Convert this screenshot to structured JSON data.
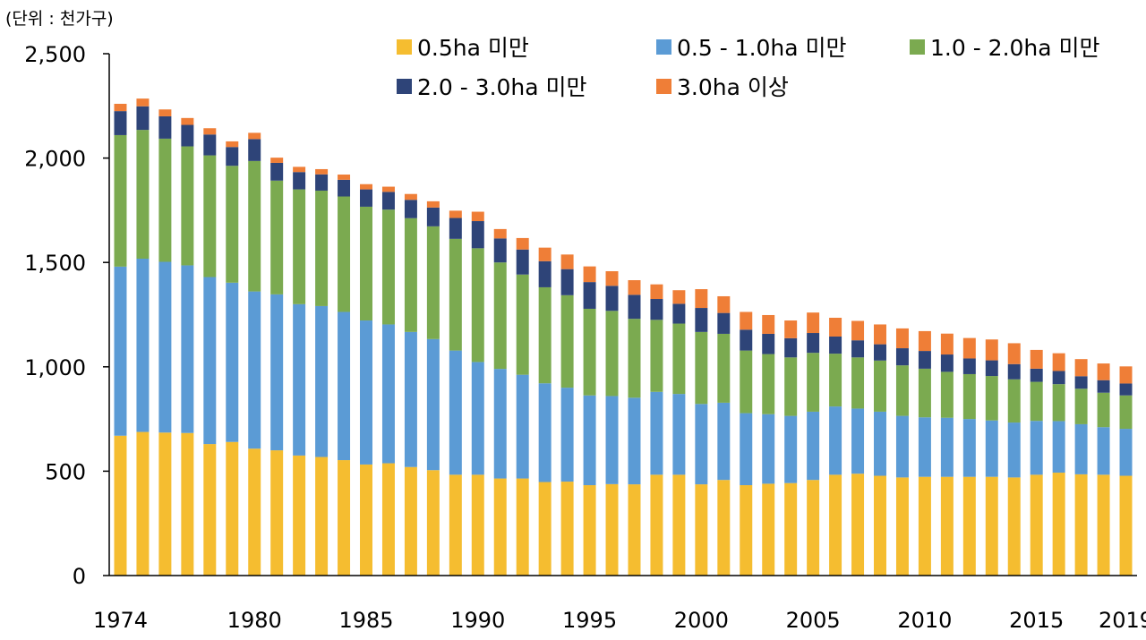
{
  "chart_data": {
    "type": "bar",
    "stacked": true,
    "unit_label": "(단위 : 천가구)",
    "y_ticks": [
      "0",
      "500",
      "1,000",
      "1,500",
      "2,000",
      "2,500"
    ],
    "ylim": [
      0,
      2500
    ],
    "x_tick_labels": [
      "1974",
      "1980",
      "1985",
      "1990",
      "1995",
      "2000",
      "2005",
      "2010",
      "2015",
      "2019"
    ],
    "categories": [
      1974,
      1975,
      1976,
      1977,
      1978,
      1979,
      1980,
      1981,
      1982,
      1983,
      1984,
      1985,
      1986,
      1987,
      1988,
      1989,
      1990,
      1991,
      1992,
      1993,
      1994,
      1995,
      1996,
      1997,
      1998,
      1999,
      2000,
      2001,
      2002,
      2003,
      2004,
      2005,
      2006,
      2007,
      2008,
      2009,
      2010,
      2011,
      2012,
      2013,
      2014,
      2015,
      2016,
      2017,
      2018,
      2019
    ],
    "legend_position": "top",
    "series": [
      {
        "name": "0.5ha 미만",
        "color": "#F5BD30",
        "values": [
          670,
          688,
          685,
          683,
          630,
          640,
          608,
          600,
          575,
          568,
          553,
          532,
          538,
          520,
          505,
          483,
          483,
          465,
          465,
          448,
          450,
          433,
          438,
          437,
          483,
          483,
          437,
          458,
          433,
          440,
          443,
          458,
          483,
          488,
          478,
          470,
          473,
          473,
          473,
          473,
          470,
          483,
          493,
          485,
          483,
          478
        ]
      },
      {
        "name": "0.5 - 1.0ha 미만",
        "color": "#5B9BD5",
        "values": [
          810,
          830,
          818,
          803,
          800,
          763,
          753,
          747,
          725,
          723,
          710,
          690,
          665,
          647,
          628,
          595,
          540,
          525,
          497,
          473,
          450,
          430,
          422,
          415,
          397,
          387,
          385,
          370,
          345,
          333,
          322,
          327,
          327,
          312,
          307,
          295,
          285,
          283,
          277,
          270,
          263,
          258,
          247,
          240,
          228,
          225
        ]
      },
      {
        "name": "1.0 - 2.0ha 미만",
        "color": "#7BAA50",
        "values": [
          630,
          617,
          590,
          570,
          583,
          560,
          625,
          545,
          550,
          553,
          553,
          545,
          550,
          545,
          540,
          535,
          545,
          510,
          480,
          460,
          443,
          415,
          408,
          378,
          345,
          337,
          345,
          330,
          300,
          288,
          280,
          282,
          253,
          245,
          245,
          242,
          233,
          220,
          215,
          213,
          207,
          187,
          177,
          170,
          165,
          160
        ]
      },
      {
        "name": "2.0 - 3.0ha 미만",
        "color": "#2E4478",
        "values": [
          115,
          113,
          107,
          103,
          100,
          90,
          105,
          85,
          83,
          78,
          80,
          83,
          85,
          88,
          90,
          100,
          130,
          115,
          120,
          125,
          125,
          128,
          120,
          115,
          100,
          95,
          115,
          100,
          100,
          97,
          92,
          95,
          82,
          82,
          78,
          82,
          85,
          83,
          75,
          75,
          73,
          63,
          63,
          60,
          60,
          57
        ]
      },
      {
        "name": "3.0ha 이상",
        "color": "#EF7E37",
        "values": [
          35,
          37,
          33,
          33,
          30,
          27,
          30,
          25,
          25,
          25,
          25,
          25,
          25,
          28,
          30,
          35,
          45,
          45,
          55,
          65,
          70,
          75,
          70,
          70,
          70,
          65,
          90,
          80,
          85,
          90,
          85,
          98,
          90,
          93,
          95,
          95,
          95,
          100,
          98,
          100,
          100,
          90,
          85,
          82,
          80,
          82
        ]
      }
    ]
  }
}
